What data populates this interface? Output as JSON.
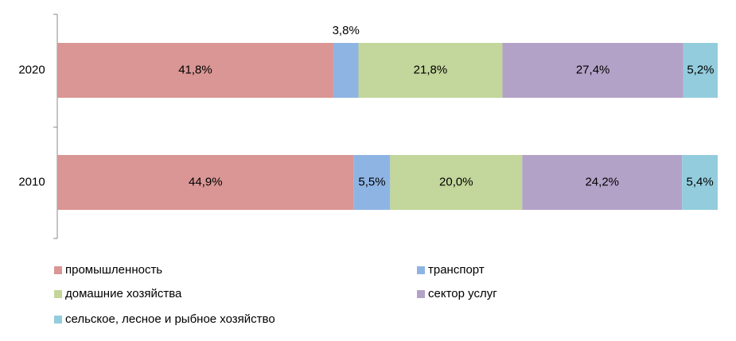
{
  "chart_data": {
    "type": "stacked-bar-horizontal",
    "categories": [
      "2020",
      "2010"
    ],
    "xlim": [
      0,
      100
    ],
    "series": [
      {
        "name": "промышленность",
        "color": "#d99694",
        "values": [
          41.8,
          44.9
        ],
        "value_labels": [
          "41,8%",
          "44,9%"
        ]
      },
      {
        "name": "транспорт",
        "color": "#8eb4e3",
        "values": [
          3.8,
          5.5
        ],
        "value_labels": [
          "3,8%",
          "5,5%"
        ]
      },
      {
        "name": "домашние хозяйства",
        "color": "#c3d69b",
        "values": [
          21.8,
          20.0
        ],
        "value_labels": [
          "21,8%",
          "20,0%"
        ]
      },
      {
        "name": "сектор услуг",
        "color": "#b3a2c7",
        "values": [
          27.4,
          24.2
        ],
        "value_labels": [
          "27,4%",
          "24,2%"
        ]
      },
      {
        "name": "сельское, лесное и рыбное хозяйство",
        "color": "#93cddd",
        "values": [
          5.2,
          5.4
        ],
        "value_labels": [
          "5,2%",
          "5,4%"
        ]
      }
    ]
  }
}
